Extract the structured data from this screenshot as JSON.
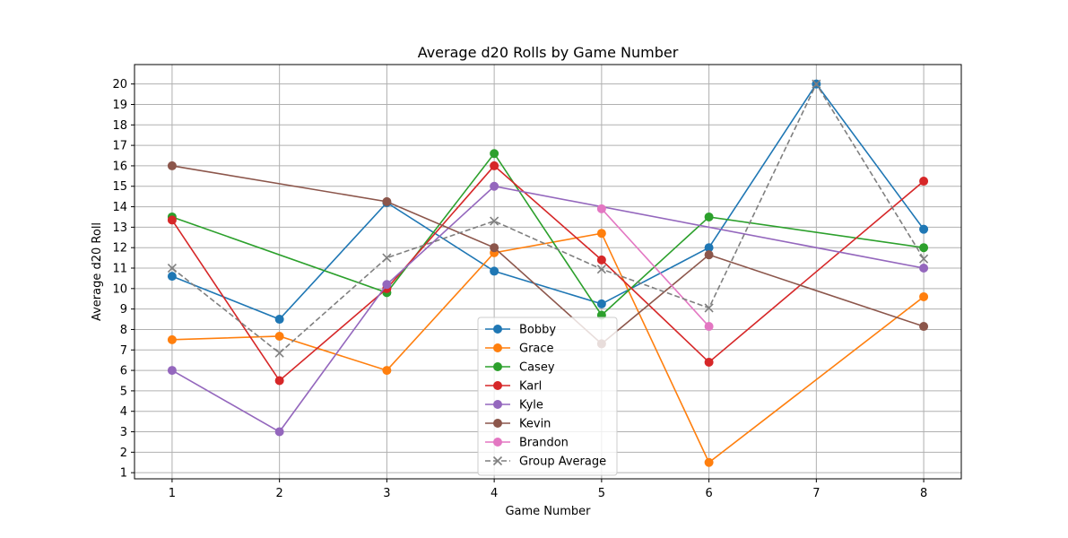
{
  "chart_data": {
    "type": "line",
    "title": "Average d20 Rolls by Game Number",
    "xlabel": "Game Number",
    "ylabel": "Average d20 Roll",
    "x_ticks": [
      1,
      2,
      3,
      4,
      5,
      6,
      7,
      8
    ],
    "y_ticks": [
      1,
      2,
      3,
      4,
      5,
      6,
      7,
      8,
      9,
      10,
      11,
      12,
      13,
      14,
      15,
      16,
      17,
      18,
      19,
      20
    ],
    "xlim": [
      0.65,
      8.35
    ],
    "ylim": [
      0.7,
      20.95
    ],
    "grid": true,
    "legend_position": "lower-center",
    "series": [
      {
        "name": "Bobby",
        "color": "#1f77b4",
        "marker": "circle",
        "dashed": false,
        "points": [
          [
            1,
            10.6
          ],
          [
            2,
            8.5
          ],
          [
            3,
            14.2
          ],
          [
            4,
            10.85
          ],
          [
            5,
            9.25
          ],
          [
            6,
            12.0
          ],
          [
            7,
            20.0
          ],
          [
            8,
            12.9
          ]
        ]
      },
      {
        "name": "Grace",
        "color": "#ff7f0e",
        "marker": "circle",
        "dashed": false,
        "points": [
          [
            1,
            7.5
          ],
          [
            2,
            7.67
          ],
          [
            3,
            6.0
          ],
          [
            4,
            11.75
          ],
          [
            5,
            12.7
          ],
          [
            6,
            1.5
          ],
          [
            8,
            9.6
          ]
        ]
      },
      {
        "name": "Casey",
        "color": "#2ca02c",
        "marker": "circle",
        "dashed": false,
        "points": [
          [
            1,
            13.5
          ],
          [
            3,
            9.8
          ],
          [
            4,
            16.6
          ],
          [
            5,
            8.7
          ],
          [
            6,
            13.5
          ],
          [
            8,
            12.0
          ]
        ]
      },
      {
        "name": "Karl",
        "color": "#d62728",
        "marker": "circle",
        "dashed": false,
        "points": [
          [
            1,
            13.35
          ],
          [
            2,
            5.5
          ],
          [
            3,
            10.0
          ],
          [
            4,
            16.0
          ],
          [
            5,
            11.4
          ],
          [
            6,
            6.4
          ],
          [
            8,
            15.25
          ]
        ]
      },
      {
        "name": "Kyle",
        "color": "#9467bd",
        "marker": "circle",
        "dashed": false,
        "points": [
          [
            1,
            6.0
          ],
          [
            2,
            3.0
          ],
          [
            3,
            10.2
          ],
          [
            4,
            15.0
          ],
          [
            8,
            11.0
          ]
        ]
      },
      {
        "name": "Kevin",
        "color": "#8c564b",
        "marker": "circle",
        "dashed": false,
        "points": [
          [
            1,
            16.0
          ],
          [
            3,
            14.25
          ],
          [
            4,
            12.0
          ],
          [
            5,
            7.3
          ],
          [
            6,
            11.65
          ],
          [
            8,
            8.15
          ]
        ]
      },
      {
        "name": "Brandon",
        "color": "#e377c2",
        "marker": "circle",
        "dashed": false,
        "points": [
          [
            5,
            13.9
          ],
          [
            6,
            8.15
          ]
        ]
      },
      {
        "name": "Group Average",
        "color": "#7f7f7f",
        "marker": "x",
        "dashed": true,
        "points": [
          [
            1,
            11.0
          ],
          [
            2,
            6.85
          ],
          [
            3,
            11.5
          ],
          [
            4,
            13.3
          ],
          [
            5,
            10.95
          ],
          [
            6,
            9.05
          ],
          [
            7,
            20.0
          ],
          [
            8,
            11.45
          ]
        ]
      }
    ]
  }
}
